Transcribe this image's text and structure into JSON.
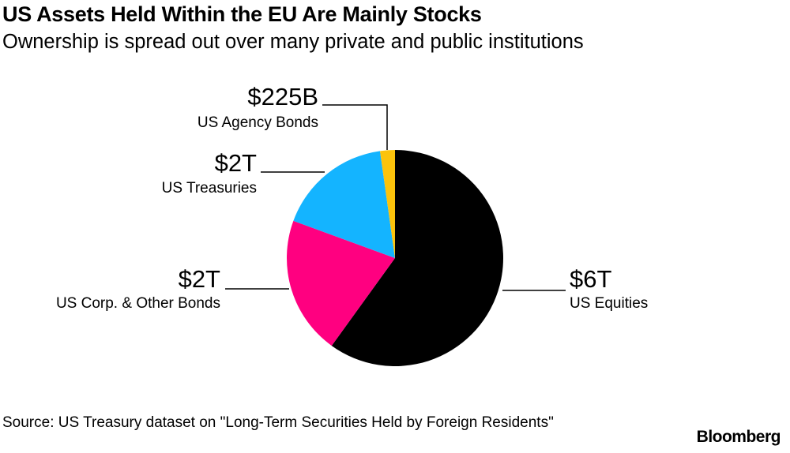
{
  "title": "US Assets Held Within the EU Are Mainly Stocks",
  "subtitle": "Ownership is spread out over many private and public institutions",
  "source": "Source: US Treasury dataset on \"Long-Term Securities Held by Foreign Residents\"",
  "logo": "Bloomberg",
  "chart_data": {
    "type": "pie",
    "title": "US Assets Held Within the EU Are Mainly Stocks",
    "start": "top, clockwise",
    "slices": [
      {
        "name": "US Equities",
        "label": "$6T",
        "value": 6.1,
        "unit": "trillion USD",
        "color": "#000000"
      },
      {
        "name": "US Corp. & Other Bonds",
        "label": "$2T",
        "value": 2.1,
        "unit": "trillion USD",
        "color": "#ff0080"
      },
      {
        "name": "US Treasuries",
        "label": "$2T",
        "value": 1.75,
        "unit": "trillion USD",
        "color": "#14b4ff"
      },
      {
        "name": "US Agency Bonds",
        "label": "$225B",
        "value": 0.225,
        "unit": "trillion USD",
        "color": "#fcc30b"
      }
    ]
  }
}
